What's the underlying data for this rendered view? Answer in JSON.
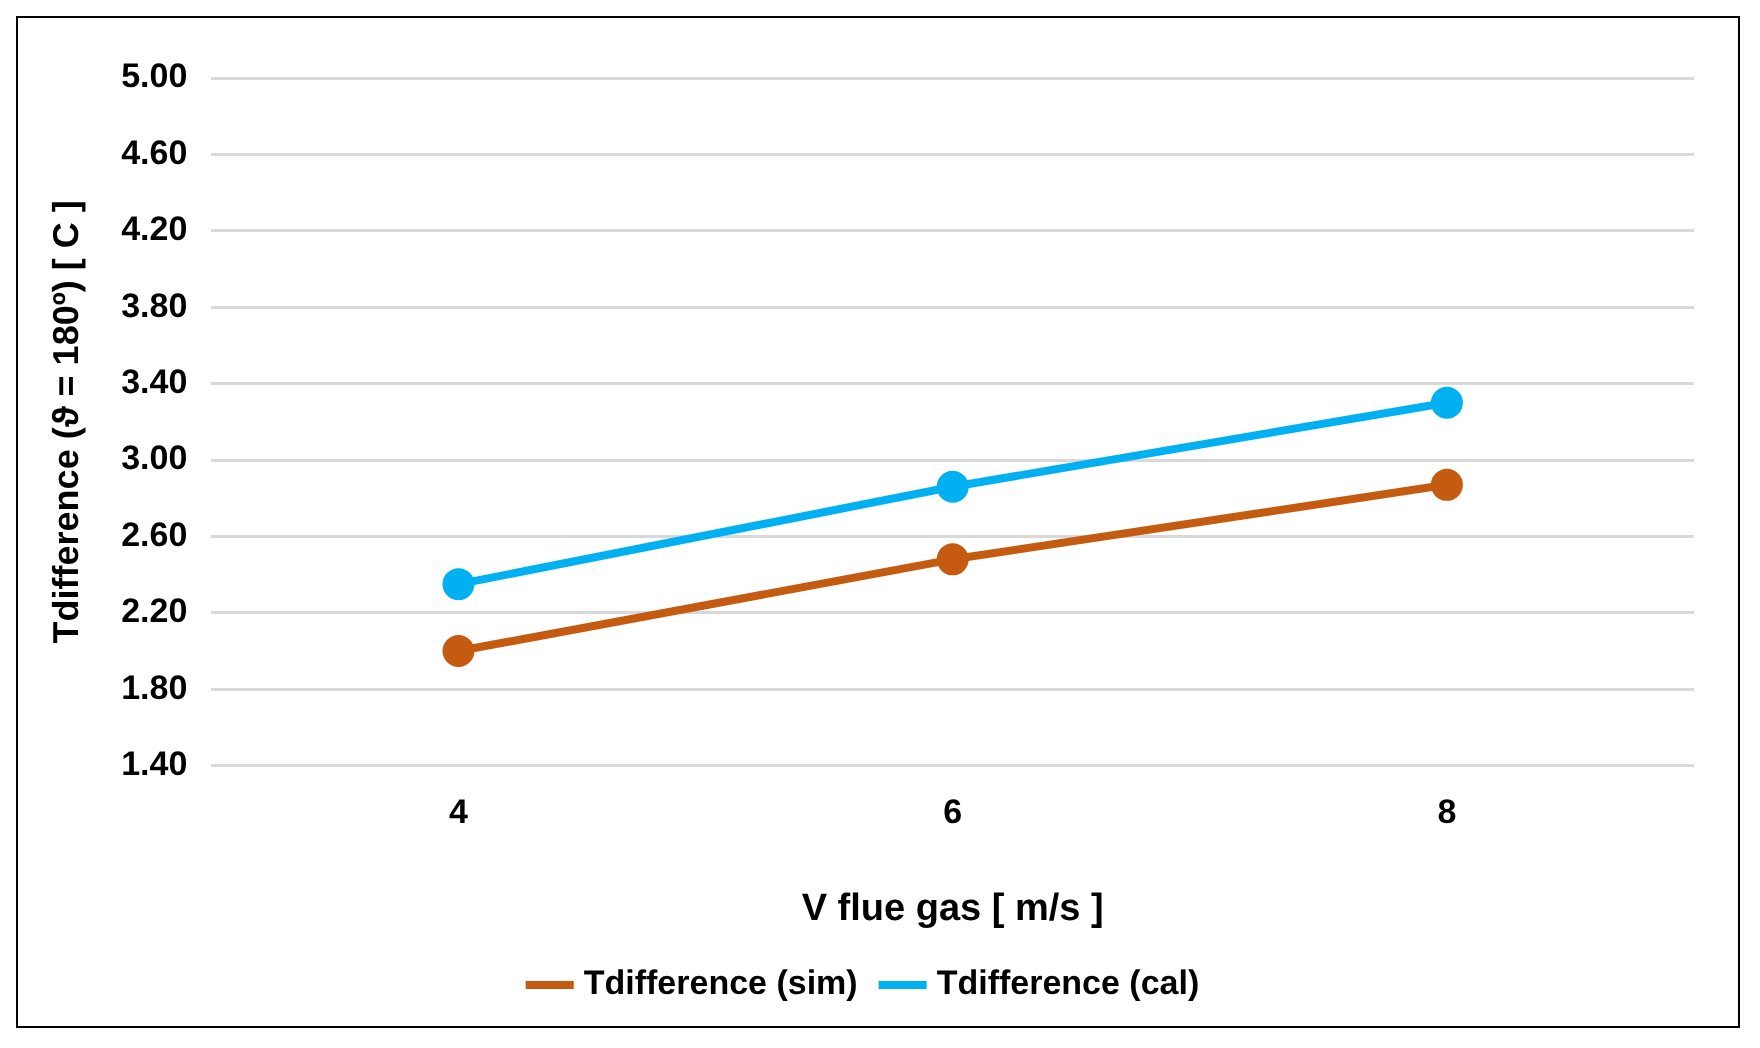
{
  "chart_data": {
    "type": "line",
    "xlabel": "V flue gas [ m/s ]",
    "ylabel": "Tdifference (ϑ = 180º) [ C ]",
    "categories": [
      "4",
      "6",
      "8"
    ],
    "series": [
      {
        "name": "Tdifference (sim)",
        "color": "#c55a11",
        "values": [
          2.0,
          2.48,
          2.87
        ]
      },
      {
        "name": "Tdifference (cal)",
        "color": "#00b0f0",
        "values": [
          2.35,
          2.86,
          3.3
        ]
      }
    ],
    "ylim": [
      1.4,
      5.0
    ],
    "yticks": [
      {
        "value": 1.4,
        "label": "1.40"
      },
      {
        "value": 1.8,
        "label": "1.80"
      },
      {
        "value": 2.2,
        "label": "2.20"
      },
      {
        "value": 2.6,
        "label": "2.60"
      },
      {
        "value": 3.0,
        "label": "3.00"
      },
      {
        "value": 3.4,
        "label": "3.40"
      },
      {
        "value": 3.8,
        "label": "3.80"
      },
      {
        "value": 4.2,
        "label": "4.20"
      },
      {
        "value": 4.6,
        "label": "4.60"
      },
      {
        "value": 5.0,
        "label": "5.00"
      }
    ],
    "grid": "y",
    "legend": "bottom",
    "marker": "circle",
    "line_style": "solid"
  }
}
